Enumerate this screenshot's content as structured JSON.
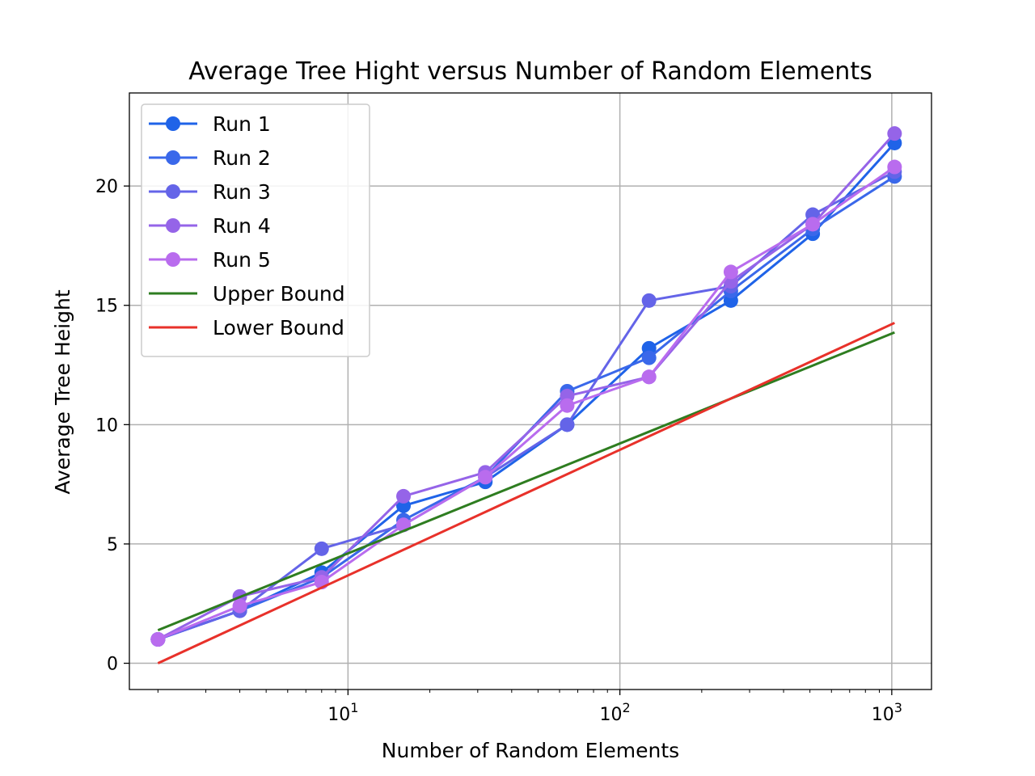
{
  "chart_data": {
    "type": "line",
    "title": "Average Tree Hight versus Number of Random Elements",
    "xlabel": "Number of Random Elements",
    "ylabel": "Average Tree Height",
    "xscale": "log",
    "xlim": [
      1.57,
      1400
    ],
    "ylim": [
      -1.1,
      23.9
    ],
    "xticks": [
      {
        "value": 10,
        "base": "10",
        "exp": "1"
      },
      {
        "value": 100,
        "base": "10",
        "exp": "2"
      },
      {
        "value": 1000,
        "base": "10",
        "exp": "3"
      }
    ],
    "yticks": [
      0,
      5,
      10,
      15,
      20
    ],
    "grid": true,
    "legend_position": "upper-left",
    "x": [
      2,
      4,
      8,
      16,
      32,
      64,
      128,
      256,
      512,
      1024
    ],
    "series": [
      {
        "name": "Run 1",
        "color": "#1f63e8",
        "marker": "circle",
        "values": [
          1.0,
          2.2,
          3.8,
          6.6,
          7.6,
          10.0,
          13.2,
          15.2,
          18.0,
          21.8
        ]
      },
      {
        "name": "Run 2",
        "color": "#3a68ea",
        "marker": "circle",
        "values": [
          1.0,
          2.2,
          3.6,
          6.0,
          7.8,
          11.4,
          12.8,
          15.6,
          18.2,
          20.4
        ]
      },
      {
        "name": "Run 3",
        "color": "#6464e8",
        "marker": "circle",
        "values": [
          1.0,
          2.2,
          4.8,
          5.8,
          7.8,
          10.0,
          15.2,
          15.8,
          18.8,
          20.6
        ]
      },
      {
        "name": "Run 4",
        "color": "#9564e8",
        "marker": "circle",
        "values": [
          1.0,
          2.8,
          3.6,
          7.0,
          8.0,
          11.2,
          12.0,
          16.0,
          18.4,
          22.2
        ]
      },
      {
        "name": "Run 5",
        "color": "#b96cee",
        "marker": "circle",
        "values": [
          1.0,
          2.4,
          3.4,
          5.8,
          7.8,
          10.8,
          12.0,
          16.4,
          18.4,
          20.8
        ]
      },
      {
        "name": "Upper Bound",
        "color": "#2e7d20",
        "marker": "none",
        "values": [
          1.386,
          2.773,
          4.159,
          5.545,
          6.931,
          8.318,
          9.704,
          11.09,
          12.477,
          13.863
        ]
      },
      {
        "name": "Lower Bound",
        "color": "#e8312a",
        "marker": "none",
        "values": [
          0,
          1.585,
          3.17,
          4.755,
          6.34,
          7.925,
          9.51,
          11.095,
          12.68,
          14.265
        ]
      }
    ]
  }
}
